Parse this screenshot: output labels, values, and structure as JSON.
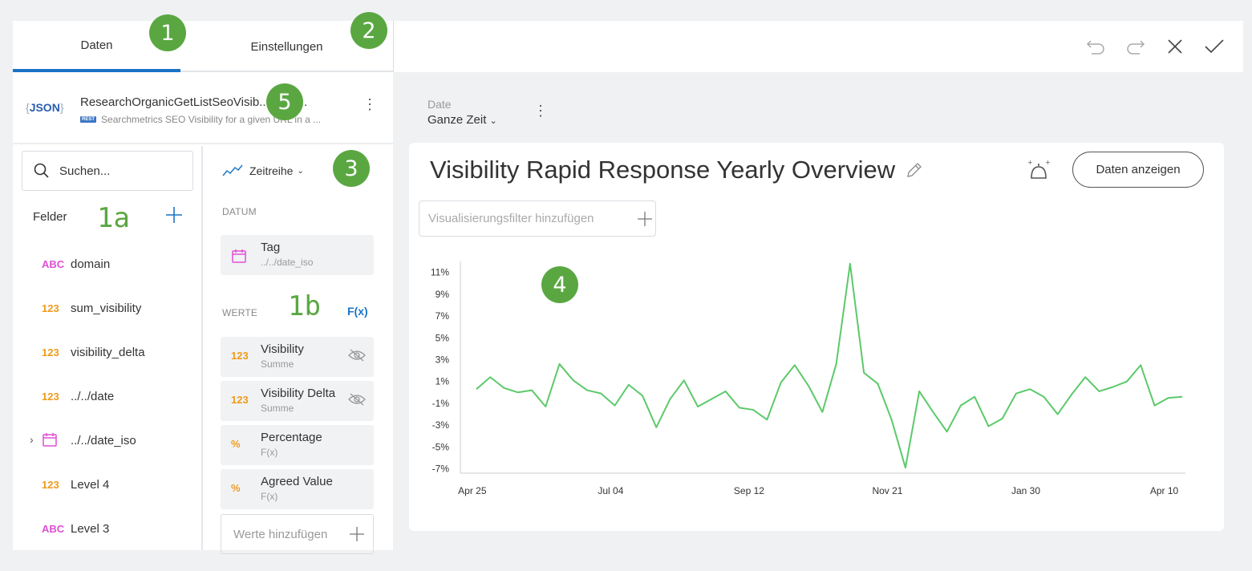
{
  "tabs": [
    {
      "label": "Daten"
    },
    {
      "label": "Einstellungen"
    }
  ],
  "datasource": {
    "badge": "JSON",
    "name": "ResearchOrganicGetListSeoVisib...oricD...",
    "type_badge": "REST",
    "description": "Searchmetrics SEO Visibility for a given URL in a ..."
  },
  "search": {
    "placeholder": "Suchen..."
  },
  "fields_header": "Felder",
  "fields": [
    {
      "type": "ABC",
      "label": "domain"
    },
    {
      "type": "123",
      "label": "sum_visibility"
    },
    {
      "type": "123",
      "label": "visibility_delta"
    },
    {
      "type": "123",
      "label": "../../date"
    },
    {
      "type": "calendar",
      "label": "../../date_iso"
    },
    {
      "type": "123",
      "label": "Level 4"
    },
    {
      "type": "ABC",
      "label": "Level 3"
    }
  ],
  "viz": {
    "type_label": "Zeitreihe",
    "section_date": "DATUM",
    "date_field": {
      "title": "Tag",
      "sub": "../../date_iso"
    },
    "section_values": "WERTE",
    "fx": "F(x)",
    "values": [
      {
        "icon": "123",
        "title": "Visibility",
        "sub": "Summe",
        "hidden_icon": true
      },
      {
        "icon": "123",
        "title": "Visibility Delta",
        "sub": "Summe",
        "hidden_icon": true
      },
      {
        "icon": "%",
        "title": "Percentage",
        "sub": "F(x)",
        "hidden_icon": false
      },
      {
        "icon": "%",
        "title": "Agreed Value",
        "sub": "F(x)",
        "hidden_icon": false
      }
    ],
    "add_values": "Werte hinzufügen"
  },
  "filter": {
    "label": "Date",
    "value": "Ganze Zeit"
  },
  "visualization": {
    "title": "Visibility Rapid Response Yearly Overview",
    "show_data_button": "Daten anzeigen",
    "filter_placeholder": "Visualisierungsfilter hinzufügen"
  },
  "markers": {
    "m1": "1",
    "m2": "2",
    "m3": "3",
    "m4": "4",
    "m5": "5",
    "l1a": "1a",
    "l1b": "1b"
  },
  "colors": {
    "accent": "#1a73c6",
    "line": "#5cc96a",
    "marker": "#5aa742"
  },
  "chart_data": {
    "type": "line",
    "xlabel": "",
    "ylabel": "",
    "y_ticks": [
      "11%",
      "9%",
      "7%",
      "5%",
      "3%",
      "1%",
      "-1%",
      "-3%",
      "-5%",
      "-7%"
    ],
    "ylim": [
      -7.4,
      12
    ],
    "x_ticks": [
      "Apr 25",
      "Jul 04",
      "Sep 12",
      "Nov 21",
      "Jan 30",
      "Apr 10"
    ],
    "series": [
      {
        "values": [
          0.3,
          1.4,
          0.4,
          0.0,
          0.2,
          -1.3,
          2.6,
          1.1,
          0.2,
          -0.1,
          -1.2,
          0.7,
          -0.3,
          -3.2,
          -0.6,
          1.1,
          -1.3,
          -0.6,
          0.1,
          -1.4,
          -1.6,
          -2.5,
          0.9,
          2.5,
          0.6,
          -1.8,
          2.6,
          11.8,
          1.8,
          0.8,
          -2.5,
          -6.9,
          0.1,
          -1.8,
          -3.6,
          -1.2,
          -0.4,
          -3.1,
          -2.4,
          -0.1,
          0.3,
          -0.4,
          -2.0,
          -0.2,
          1.4,
          0.1,
          0.5,
          1.0,
          2.5,
          -1.2,
          -0.5,
          -0.4
        ]
      }
    ]
  }
}
